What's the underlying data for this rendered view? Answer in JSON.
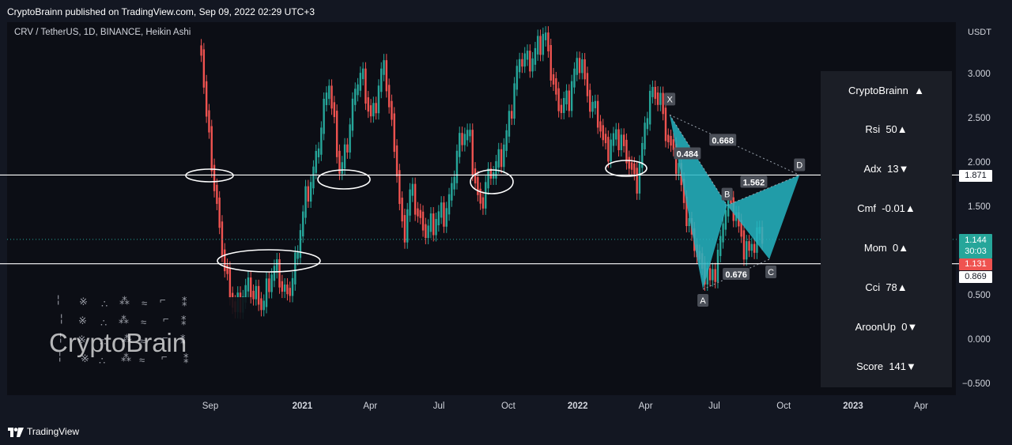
{
  "header": {
    "publish_text": "CryptoBrainn published on TradingView.com, Sep 09, 2022 02:29 UTC+3"
  },
  "symbol_info": "CRV / TetherUS, 1D, BINANCE, Heikin Ashi",
  "price_axis": {
    "currency": "USDT",
    "ticks": [
      "3.000",
      "2.500",
      "2.000",
      "1.500",
      "0.500",
      "0.000",
      "−0.500"
    ],
    "tags": {
      "level_upper": "1.871",
      "current_price": "1.144",
      "countdown": "30:03",
      "last_close": "1.131",
      "level_lower": "0.869"
    }
  },
  "time_axis": {
    "ticks": [
      "Sep",
      "2021",
      "Apr",
      "Jul",
      "Oct",
      "2022",
      "Apr",
      "Jul",
      "Oct",
      "2023",
      "Apr"
    ]
  },
  "pattern": {
    "points": [
      "X",
      "A",
      "B",
      "C",
      "D"
    ],
    "ratios": [
      "0.484",
      "1.562",
      "0.676",
      "0.668"
    ]
  },
  "indicator_panel": {
    "title": "CryptoBrainn",
    "title_icon": "▲",
    "rows": [
      {
        "label": "Rsi",
        "value": "50",
        "arrow": "▲"
      },
      {
        "label": "Adx",
        "value": "13",
        "arrow": "▼"
      },
      {
        "label": "Cmf",
        "value": "-0.01",
        "arrow": "▲"
      },
      {
        "label": "Mom",
        "value": "0",
        "arrow": "▲"
      },
      {
        "label": "Cci",
        "value": "78",
        "arrow": "▲"
      },
      {
        "label": "AroonUp",
        "value": "0",
        "arrow": "▼"
      },
      {
        "label": "Score",
        "value": "141",
        "arrow": "▼"
      }
    ]
  },
  "watermark": "CryptoBrain",
  "footer": {
    "brand": "TradingView"
  },
  "colors": {
    "up": "#26a69a",
    "down": "#ef5350",
    "pattern_fill": "#26b5c2",
    "background": "#131722"
  },
  "chart_data": {
    "type": "line",
    "title": "",
    "xlabel": "",
    "ylabel": "USDT",
    "ylim": [
      -0.5,
      3.3
    ],
    "horizontal_levels": [
      1.871,
      0.869
    ],
    "current_price": 1.144,
    "series": [
      {
        "x": [
          "2020-08-20",
          "2020-08-28",
          "2020-09-05",
          "2020-09-15",
          "2020-09-25",
          "2020-10-10",
          "2020-10-25",
          "2020-11-10",
          "2020-11-25",
          "2020-12-10",
          "2020-12-25",
          "2021-01-05",
          "2021-01-20",
          "2021-02-05",
          "2021-02-20",
          "2021-03-05",
          "2021-03-20",
          "2021-04-05",
          "2021-04-20",
          "2021-05-05",
          "2021-05-15",
          "2021-05-25",
          "2021-06-10",
          "2021-06-25",
          "2021-07-10",
          "2021-07-25",
          "2021-08-10",
          "2021-08-25",
          "2021-09-10",
          "2021-09-25",
          "2021-10-05",
          "2021-10-20",
          "2021-11-05",
          "2021-11-20",
          "2021-12-05",
          "2021-12-20",
          "2022-01-05",
          "2022-01-20",
          "2022-02-05",
          "2022-02-20",
          "2022-03-05",
          "2022-03-20",
          "2022-04-05",
          "2022-04-20",
          "2022-05-05",
          "2022-05-20",
          "2022-06-05",
          "2022-06-15",
          "2022-06-25",
          "2022-07-05",
          "2022-07-15",
          "2022-07-25",
          "2022-08-05",
          "2022-08-15",
          "2022-08-25",
          "2022-09-05"
        ],
        "values": [
          3.3,
          2.6,
          1.9,
          1.0,
          0.6,
          0.45,
          0.5,
          0.55,
          0.7,
          0.6,
          0.9,
          1.5,
          2.2,
          2.8,
          2.0,
          2.4,
          3.0,
          2.6,
          3.0,
          2.2,
          1.1,
          1.6,
          1.4,
          1.2,
          1.5,
          2.1,
          2.3,
          1.6,
          1.8,
          2.3,
          2.6,
          3.2,
          3.3,
          3.3,
          2.8,
          2.6,
          3.3,
          2.6,
          2.2,
          2.4,
          2.0,
          1.9,
          2.6,
          2.8,
          2.2,
          1.6,
          1.2,
          0.7,
          0.62,
          1.0,
          1.5,
          1.4,
          1.25,
          1.1,
          1.05,
          1.144
        ]
      }
    ],
    "harmonic_pattern": {
      "X": [
        "2022-05-03",
        2.55
      ],
      "A": [
        "2022-06-16",
        0.58
      ],
      "B": [
        "2022-07-18",
        1.53
      ],
      "C": [
        "2022-09-12",
        0.92
      ],
      "D": [
        "2022-10-22",
        1.871
      ],
      "ratios": {
        "XB": 0.484,
        "AC": 0.676,
        "BD": 1.562,
        "XD": 0.668
      }
    }
  }
}
